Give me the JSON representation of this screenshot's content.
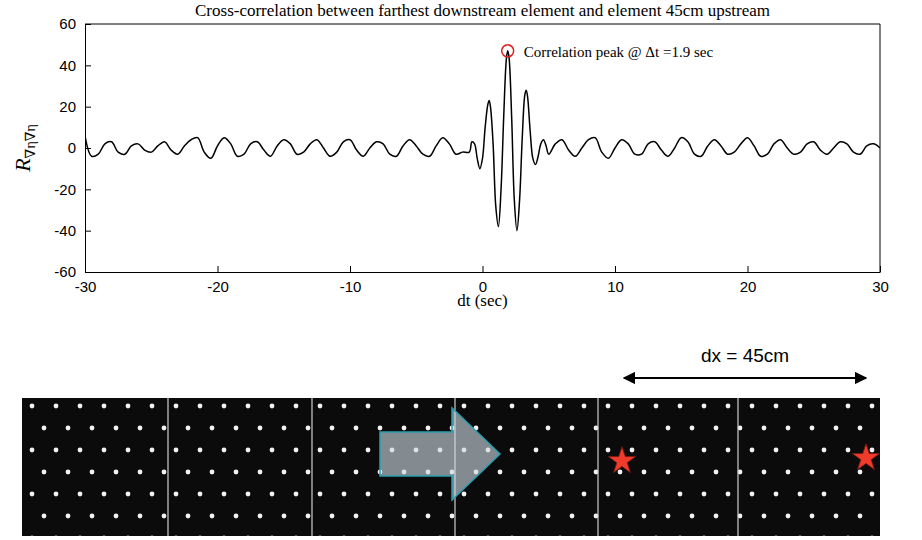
{
  "chart_data": {
    "type": "line",
    "title": "Cross-correlation between farthest downstream element and element 45cm upstream",
    "xlabel": "dt (sec)",
    "ylabel": "R∇η∇η",
    "xlim": [
      -30,
      30
    ],
    "xticks": [
      -30,
      -20,
      -10,
      0,
      10,
      20,
      30
    ],
    "ylim": [
      -60,
      60
    ],
    "yticks": [
      -60,
      -40,
      -20,
      0,
      20,
      40,
      60
    ],
    "grid": false,
    "color": "#000000",
    "x": [
      -30,
      -29.5,
      -29,
      -28.5,
      -28,
      -27.5,
      -27,
      -26.5,
      -26,
      -25.5,
      -25,
      -24.5,
      -24,
      -23.5,
      -23,
      -22.5,
      -22,
      -21.5,
      -21,
      -20.5,
      -20,
      -19.5,
      -19,
      -18.5,
      -18,
      -17.5,
      -17,
      -16.5,
      -16,
      -15.5,
      -15,
      -14.5,
      -14,
      -13.5,
      -13,
      -12.5,
      -12,
      -11.5,
      -11,
      -10.5,
      -10,
      -9.5,
      -9,
      -8.5,
      -8,
      -7.5,
      -7,
      -6.5,
      -6,
      -5.5,
      -5,
      -4.5,
      -4,
      -3.5,
      -3,
      -2.5,
      -2,
      -1.5,
      -1.0,
      -0.8,
      -0.6,
      -0.4,
      -0.2,
      0,
      0.2,
      0.4,
      0.5,
      0.6,
      0.8,
      1.0,
      1.2,
      1.4,
      1.6,
      1.8,
      1.9,
      2.0,
      2.2,
      2.4,
      2.6,
      2.8,
      3.0,
      3.2,
      3.3,
      3.4,
      3.6,
      3.8,
      4.0,
      4.2,
      4.4,
      4.6,
      4.8,
      5.0,
      5.5,
      6,
      6.5,
      7,
      7.5,
      8,
      8.5,
      9,
      9.5,
      10,
      10.5,
      11,
      11.5,
      12,
      12.5,
      13,
      13.5,
      14,
      14.5,
      15,
      15.5,
      16,
      16.5,
      17,
      17.5,
      18,
      18.5,
      19,
      19.5,
      20,
      20.5,
      21,
      21.5,
      22,
      22.5,
      23,
      23.5,
      24,
      24.5,
      25,
      25.5,
      26,
      26.5,
      27,
      27.5,
      28,
      28.5,
      29,
      29.5,
      30
    ],
    "values": [
      6,
      -4,
      -3,
      2,
      3,
      -2,
      -3,
      1,
      2,
      -1,
      -2,
      1,
      3,
      -1,
      -3,
      1,
      4,
      5,
      -2,
      -5,
      1,
      5,
      2,
      -4,
      -3,
      2,
      3,
      -1,
      -4,
      1,
      4,
      2,
      -3,
      -2,
      2,
      4,
      0,
      -4,
      -2,
      3,
      4,
      -1,
      -4,
      0,
      3,
      2,
      -3,
      -4,
      1,
      4,
      1,
      -3,
      -4,
      1,
      5,
      2,
      -3,
      -2,
      -2,
      3,
      2,
      -5,
      -10,
      -5,
      10,
      21,
      23,
      20,
      2,
      -28,
      -38,
      -20,
      15,
      43,
      47,
      44,
      15,
      -25,
      -40,
      -25,
      5,
      26,
      28,
      25,
      8,
      -5,
      -8,
      -4,
      2,
      4,
      1,
      -3,
      2,
      4,
      -1,
      -4,
      0,
      4,
      5,
      -2,
      -5,
      0,
      4,
      2,
      -3,
      -3,
      2,
      3,
      -1,
      -4,
      0,
      5,
      3,
      -3,
      -4,
      1,
      4,
      1,
      -3,
      -2,
      2,
      5,
      1,
      -4,
      -3,
      2,
      4,
      0,
      -3,
      -2,
      2,
      3,
      -1,
      -3,
      0,
      3,
      2,
      -2,
      -3,
      1,
      2,
      0
    ],
    "annotations": [
      {
        "text": "Correlation peak @ Δt =1.9 sec",
        "x": 1.9,
        "y": 47,
        "color": "#e02020"
      }
    ]
  },
  "figure": {
    "dx_label": "dx = 45cm"
  }
}
